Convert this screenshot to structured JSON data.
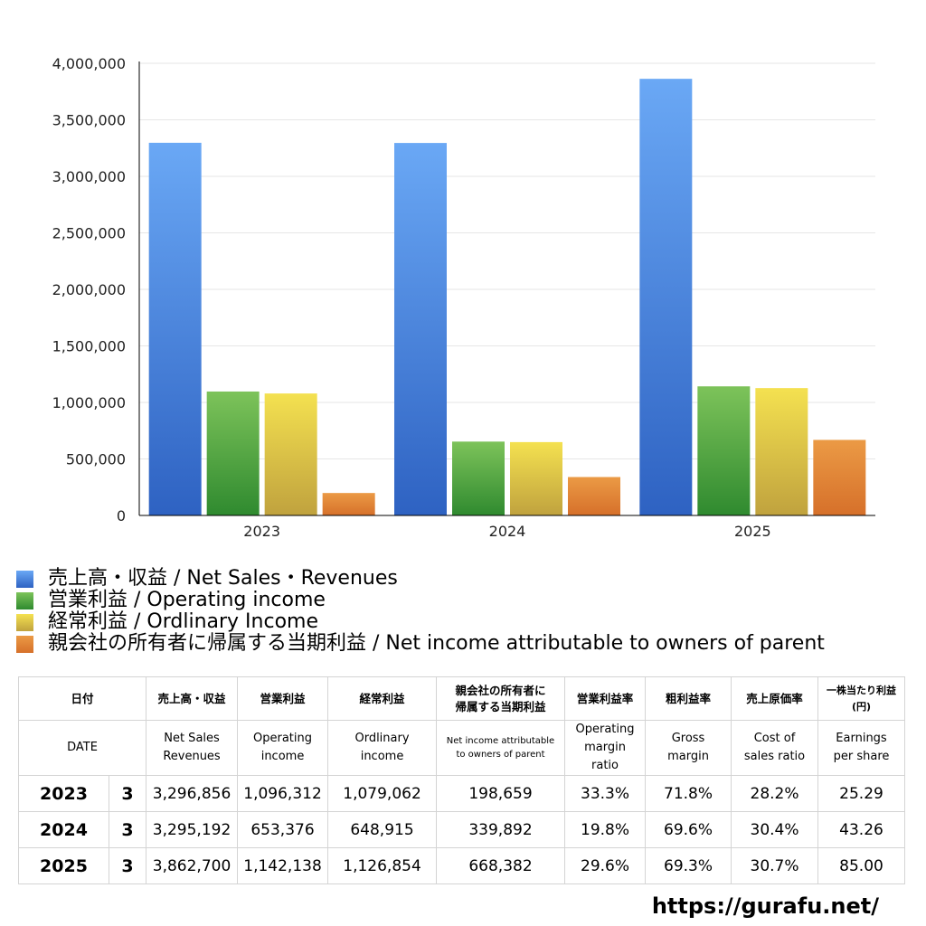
{
  "chart_data": {
    "type": "bar",
    "categories": [
      "2023",
      "2024",
      "2025"
    ],
    "series": [
      {
        "name": "売上高・収益 / Net Sales・Revenues",
        "values": [
          3296856,
          3295192,
          3862700
        ],
        "color_top": "#6aa8f5",
        "color_bottom": "#2e62c2"
      },
      {
        "name": "営業利益 / Operating income",
        "values": [
          1096312,
          653376,
          1142138
        ],
        "color_top": "#7dc35a",
        "color_bottom": "#2f8a2f"
      },
      {
        "name": "経常利益 / Ordlinary Income",
        "values": [
          1079062,
          648915,
          1126854
        ],
        "color_top": "#f4e150",
        "color_bottom": "#c0a23e"
      },
      {
        "name": "親会社の所有者に帰属する当期利益 / Net income attributable to owners of parent",
        "values": [
          198659,
          339892,
          668382
        ],
        "color_top": "#eb9a45",
        "color_bottom": "#d6702a"
      }
    ],
    "ylim": [
      0,
      4000000
    ],
    "yticks": [
      0,
      500000,
      1000000,
      1500000,
      2000000,
      2500000,
      3000000,
      3500000,
      4000000
    ],
    "ytick_labels": [
      "0",
      "500,000",
      "1,000,000",
      "1,500,000",
      "2,000,000",
      "2,500,000",
      "3,000,000",
      "3,500,000",
      "4,000,000"
    ],
    "grid": true,
    "legend_placement": "bottom"
  },
  "table": {
    "header_jp": {
      "date": "日付",
      "sales": "売上高・収益",
      "operating": "営業利益",
      "ordinary": "経常利益",
      "net_line1": "親会社の所有者に",
      "net_line2": "帰属する当期利益",
      "op_margin": "営業利益率",
      "gross": "粗利益率",
      "cost": "売上原価率",
      "eps_line1": "一株当たり利益",
      "eps_line2": "(円)"
    },
    "header_en": {
      "date": "DATE",
      "sales_line1": "Net Sales",
      "sales_line2": "Revenues",
      "operating_line1": "Operating",
      "operating_line2": "income",
      "ordinary_line1": "Ordlinary",
      "ordinary_line2": "income",
      "net_line1": "Net income attributable",
      "net_line2": "to owners of parent",
      "op_margin_line1": "Operating",
      "op_margin_line2": "margin",
      "op_margin_line3": "ratio",
      "gross_line1": "Gross",
      "gross_line2": "margin",
      "cost_line1": "Cost of",
      "cost_line2": "sales ratio",
      "eps_line1": "Earnings",
      "eps_line2": "per share"
    },
    "rows": [
      {
        "year": "2023",
        "month": "3",
        "sales": "3,296,856",
        "operating": "1,096,312",
        "ordinary": "1,079,062",
        "net": "198,659",
        "op_margin": "33.3%",
        "gross": "71.8%",
        "cost": "28.2%",
        "eps": "25.29"
      },
      {
        "year": "2024",
        "month": "3",
        "sales": "3,295,192",
        "operating": "653,376",
        "ordinary": "648,915",
        "net": "339,892",
        "op_margin": "19.8%",
        "gross": "69.6%",
        "cost": "30.4%",
        "eps": "43.26"
      },
      {
        "year": "2025",
        "month": "3",
        "sales": "3,862,700",
        "operating": "1,142,138",
        "ordinary": "1,126,854",
        "net": "668,382",
        "op_margin": "29.6%",
        "gross": "69.3%",
        "cost": "30.7%",
        "eps": "85.00"
      }
    ]
  },
  "footer": {
    "url": "https://gurafu.net/"
  }
}
